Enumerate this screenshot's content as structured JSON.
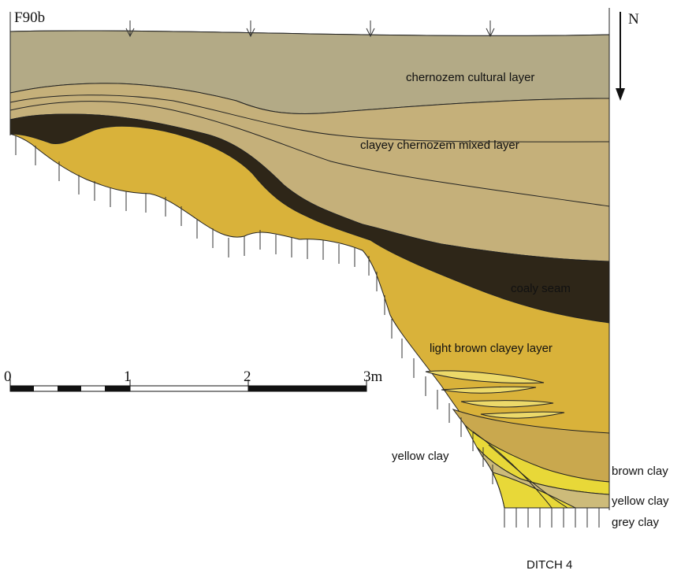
{
  "header": {
    "title": "F90b",
    "north": "N"
  },
  "layers": [
    {
      "label": "chernozem cultural layer"
    },
    {
      "label": "clayey chernozem mixed layer"
    },
    {
      "label": "coaly seam"
    },
    {
      "label": "light brown clayey layer"
    },
    {
      "label": "yellow clay"
    },
    {
      "label": "brown clay"
    },
    {
      "label": "yellow clay"
    },
    {
      "label": "grey clay"
    }
  ],
  "scale": {
    "labels": [
      "0",
      "1",
      "2",
      "3m"
    ]
  },
  "footer": "DITCH 4"
}
